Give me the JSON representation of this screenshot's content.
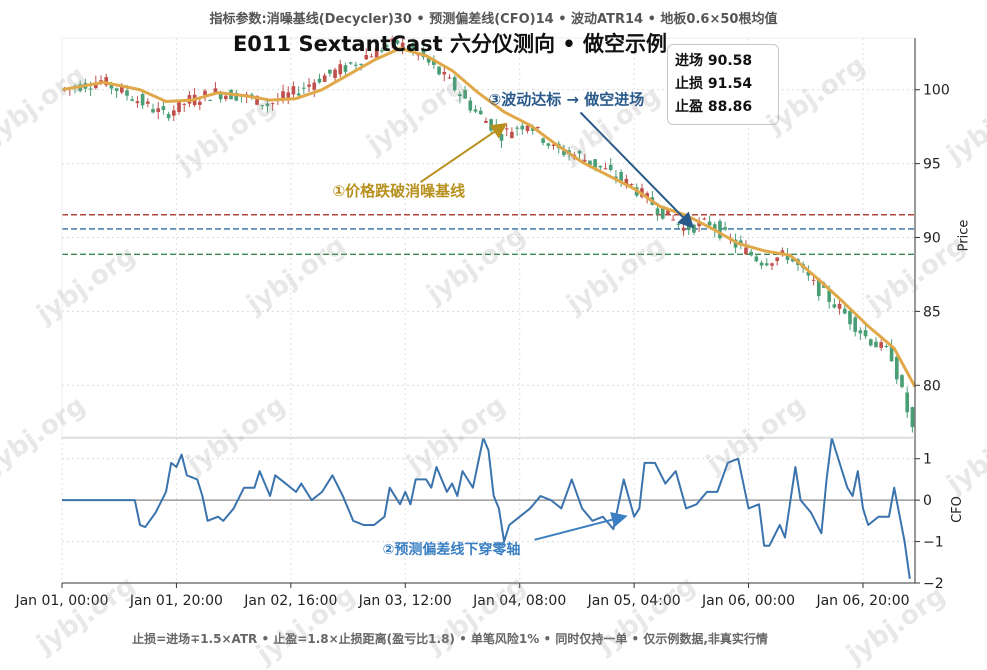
{
  "header": {
    "subtitle": "指标参数:消噪基线(Decycler)30 • 预测偏差线(CFO)14 • 波动ATR14 • 地板0.6×50根均值",
    "title": "E011 SextantCast 六分仪测向 • 做空示例"
  },
  "info_box": {
    "entry": "进场 90.58",
    "stop": "止损 91.54",
    "target": "止盈 88.86"
  },
  "footer": "止损=进场∓1.5×ATR • 止盈=1.8×止损距离(盈亏比1.8) • 单笔风险1% • 同时仅持一单 • 仅示例数据,非真实行情",
  "watermark": "jybj.org",
  "colors": {
    "up": "#c0504d",
    "down": "#4a9e75",
    "decycler": "#e0a848",
    "cfo": "#3b73ad",
    "entry_line": "#2e6aa5",
    "stop_line": "#b0453f",
    "target_line": "#3a8a55",
    "annot1": "#b8901e",
    "annot2": "#3b7fc2",
    "annot3": "#2a5a8a"
  },
  "chart_data": [
    {
      "type": "candlestick",
      "ylabel": "Price",
      "ylim": [
        76.5,
        103.5
      ],
      "yticks": [
        80,
        85,
        90,
        95,
        100
      ],
      "x_range": [
        0,
        164
      ],
      "levels": {
        "entry": 90.58,
        "stop": 91.54,
        "target": 88.86
      },
      "decycler_points": [
        [
          0,
          100.0
        ],
        [
          8,
          100.5
        ],
        [
          15,
          100.0
        ],
        [
          20,
          99.2
        ],
        [
          25,
          99.3
        ],
        [
          30,
          99.8
        ],
        [
          35,
          99.6
        ],
        [
          40,
          99.3
        ],
        [
          45,
          99.4
        ],
        [
          50,
          100.0
        ],
        [
          55,
          101.0
        ],
        [
          60,
          102.0
        ],
        [
          65,
          102.8
        ],
        [
          70,
          102.3
        ],
        [
          75,
          101.3
        ],
        [
          80,
          99.8
        ],
        [
          85,
          98.5
        ],
        [
          90,
          97.6
        ],
        [
          95,
          96.3
        ],
        [
          100,
          95.1
        ],
        [
          105,
          94.2
        ],
        [
          110,
          93.3
        ],
        [
          115,
          92.1
        ],
        [
          120,
          91.5
        ],
        [
          125,
          90.6
        ],
        [
          130,
          89.6
        ],
        [
          135,
          89.1
        ],
        [
          140,
          88.8
        ],
        [
          145,
          87.3
        ],
        [
          150,
          85.7
        ],
        [
          155,
          84.0
        ],
        [
          160,
          82.5
        ],
        [
          164,
          79.9
        ]
      ],
      "candle_path": [
        [
          0,
          100.0
        ],
        [
          8,
          100.6
        ],
        [
          14,
          99.5
        ],
        [
          20,
          98.3
        ],
        [
          25,
          99.3
        ],
        [
          30,
          99.8
        ],
        [
          35,
          99.6
        ],
        [
          40,
          99.0
        ],
        [
          45,
          99.8
        ],
        [
          50,
          100.8
        ],
        [
          55,
          101.5
        ],
        [
          60,
          102.5
        ],
        [
          65,
          103.2
        ],
        [
          70,
          102.1
        ],
        [
          75,
          100.5
        ],
        [
          80,
          98.5
        ],
        [
          85,
          97.0
        ],
        [
          90,
          97.8
        ],
        [
          95,
          96.0
        ],
        [
          100,
          95.5
        ],
        [
          105,
          94.5
        ],
        [
          110,
          93.5
        ],
        [
          115,
          92.0
        ],
        [
          120,
          90.6
        ],
        [
          125,
          91.0
        ],
        [
          130,
          89.5
        ],
        [
          135,
          88.4
        ],
        [
          140,
          88.8
        ],
        [
          145,
          86.8
        ],
        [
          150,
          85.2
        ],
        [
          155,
          83.3
        ],
        [
          160,
          82.0
        ],
        [
          164,
          77.0
        ]
      ],
      "annotations": [
        {
          "text": "①价格跌破消噪基线",
          "x": 52,
          "y": 93.2,
          "ax": 85,
          "ay": 97.6
        },
        {
          "text": "③波动达标 → 做空进场",
          "x": 82,
          "y": 99.0,
          "ax": 121,
          "ay": 90.8
        }
      ]
    },
    {
      "type": "line",
      "ylabel": "CFO",
      "ylim": [
        -2.0,
        1.5
      ],
      "yticks": [
        1,
        0,
        -1,
        -2
      ],
      "xtick_labels": [
        "Jan 01, 00:00",
        "Jan 01, 20:00",
        "Jan 02, 16:00",
        "Jan 03, 12:00",
        "Jan 04, 08:00",
        "Jan 05, 04:00",
        "Jan 06, 00:00",
        "Jan 06, 20:00"
      ],
      "xtick_positions": [
        0,
        22,
        44,
        66,
        88,
        110,
        132,
        154
      ],
      "cfo_points": [
        [
          0,
          0
        ],
        [
          4,
          0
        ],
        [
          8,
          0
        ],
        [
          12,
          0
        ],
        [
          14,
          0
        ],
        [
          15,
          -0.6
        ],
        [
          16,
          -0.65
        ],
        [
          18,
          -0.3
        ],
        [
          20,
          0.2
        ],
        [
          21,
          0.9
        ],
        [
          22,
          0.8
        ],
        [
          23,
          1.1
        ],
        [
          24,
          0.6
        ],
        [
          26,
          0.5
        ],
        [
          27,
          0.1
        ],
        [
          28,
          -0.5
        ],
        [
          30,
          -0.4
        ],
        [
          31,
          -0.5
        ],
        [
          33,
          -0.2
        ],
        [
          35,
          0.3
        ],
        [
          37,
          0.3
        ],
        [
          38,
          0.7
        ],
        [
          40,
          0.1
        ],
        [
          41,
          0.6
        ],
        [
          43,
          0.4
        ],
        [
          45,
          0.2
        ],
        [
          46,
          0.4
        ],
        [
          48,
          0.0
        ],
        [
          50,
          0.2
        ],
        [
          52,
          0.6
        ],
        [
          54,
          0.1
        ],
        [
          56,
          -0.5
        ],
        [
          58,
          -0.6
        ],
        [
          60,
          -0.6
        ],
        [
          62,
          -0.4
        ],
        [
          63,
          0.3
        ],
        [
          65,
          -0.1
        ],
        [
          66,
          0.2
        ],
        [
          67,
          -0.1
        ],
        [
          68,
          0.5
        ],
        [
          70,
          0.5
        ],
        [
          71,
          0.3
        ],
        [
          72,
          0.8
        ],
        [
          74,
          0.2
        ],
        [
          75,
          0.4
        ],
        [
          76,
          0.1
        ],
        [
          77,
          0.7
        ],
        [
          79,
          0.3
        ],
        [
          81,
          1.5
        ],
        [
          82,
          1.2
        ],
        [
          83,
          0.1
        ],
        [
          84,
          -0.2
        ],
        [
          85,
          -1.0
        ],
        [
          86,
          -0.6
        ],
        [
          88,
          -0.4
        ],
        [
          90,
          -0.2
        ],
        [
          92,
          0.1
        ],
        [
          94,
          0.0
        ],
        [
          96,
          -0.2
        ],
        [
          98,
          0.5
        ],
        [
          100,
          -0.2
        ],
        [
          102,
          -0.5
        ],
        [
          104,
          -0.4
        ],
        [
          106,
          -0.7
        ],
        [
          108,
          0.5
        ],
        [
          110,
          -0.4
        ],
        [
          111,
          -0.2
        ],
        [
          112,
          0.9
        ],
        [
          114,
          0.9
        ],
        [
          116,
          0.4
        ],
        [
          118,
          0.7
        ],
        [
          120,
          -0.2
        ],
        [
          122,
          -0.1
        ],
        [
          124,
          0.2
        ],
        [
          126,
          0.2
        ],
        [
          128,
          0.9
        ],
        [
          130,
          1.0
        ],
        [
          132,
          -0.2
        ],
        [
          134,
          -0.1
        ],
        [
          135,
          -1.1
        ],
        [
          136,
          -1.1
        ],
        [
          138,
          -0.6
        ],
        [
          139,
          -0.9
        ],
        [
          141,
          0.8
        ],
        [
          142,
          0.0
        ],
        [
          144,
          -0.3
        ],
        [
          146,
          -0.8
        ],
        [
          147,
          0.5
        ],
        [
          148,
          1.5
        ],
        [
          150,
          0.7
        ],
        [
          151,
          0.3
        ],
        [
          152,
          0.1
        ],
        [
          153,
          0.7
        ],
        [
          154,
          -0.2
        ],
        [
          155,
          -0.6
        ],
        [
          157,
          -0.4
        ],
        [
          159,
          -0.4
        ],
        [
          160,
          0.3
        ],
        [
          162,
          -1.0
        ],
        [
          163,
          -1.9
        ]
      ],
      "annotation": {
        "text": "②预测偏差线下穿零轴",
        "x": 62,
        "y": -1.15,
        "ax": 108,
        "ay": -0.4
      }
    }
  ]
}
